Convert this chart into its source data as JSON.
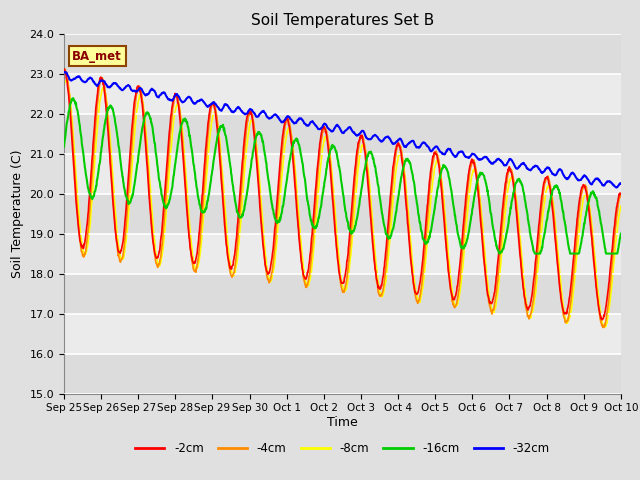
{
  "title": "Soil Temperatures Set B",
  "xlabel": "Time",
  "ylabel": "Soil Temperature (C)",
  "ylim": [
    15.0,
    24.0
  ],
  "yticks": [
    15.0,
    16.0,
    17.0,
    18.0,
    19.0,
    20.0,
    21.0,
    22.0,
    23.0,
    24.0
  ],
  "xtick_labels": [
    "Sep 25",
    "Sep 26",
    "Sep 27",
    "Sep 28",
    "Sep 29",
    "Sep 30",
    "Oct 1",
    "Oct 2",
    "Oct 3",
    "Oct 4",
    "Oct 5",
    "Oct 6",
    "Oct 7",
    "Oct 8",
    "Oct 9",
    "Oct 10"
  ],
  "colors": {
    "-2cm": "#FF0000",
    "-4cm": "#FF8C00",
    "-8cm": "#FFFF00",
    "-16cm": "#00CC00",
    "-32cm": "#0000FF"
  },
  "legend_label": "BA_met",
  "band_colors": [
    "#DCDCDC",
    "#EBEBEB"
  ],
  "num_days": 15,
  "points_per_day": 96
}
